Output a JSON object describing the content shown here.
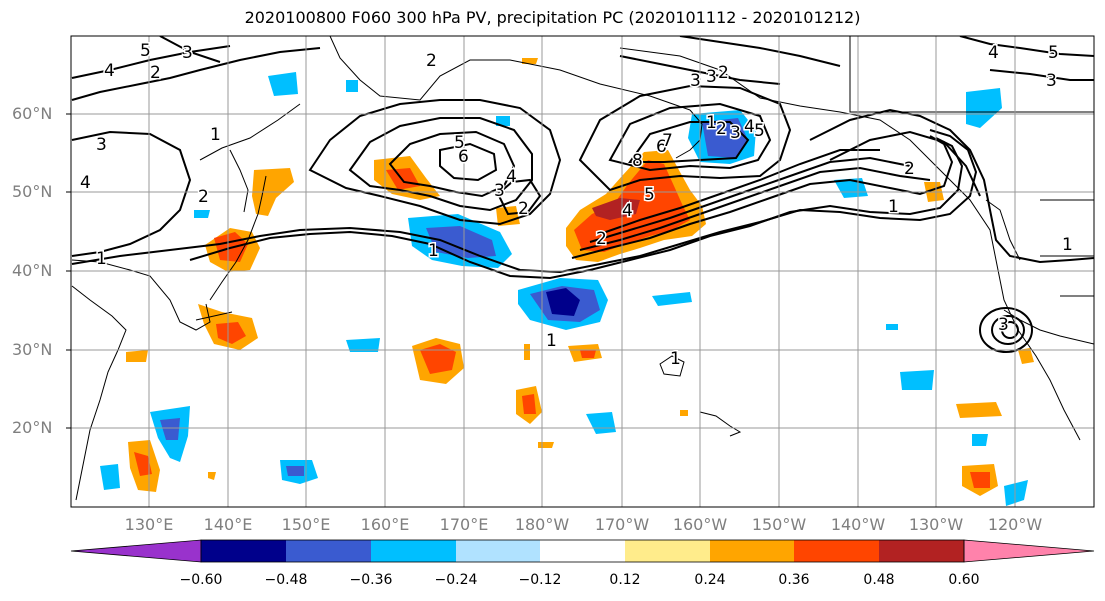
{
  "title": "2020100800 F060 300 hPa PV, precipitation PC (2020101112 - 2020101212)",
  "lat_labels": [
    "60°N",
    "50°N",
    "40°N",
    "30°N",
    "20°N"
  ],
  "lon_labels": [
    "130°E",
    "140°E",
    "150°E",
    "160°E",
    "170°E",
    "180°W",
    "170°W",
    "160°W",
    "150°W",
    "140°W",
    "130°W",
    "120°W"
  ],
  "colorbar": {
    "ticks": [
      "−0.60",
      "−0.48",
      "−0.36",
      "−0.24",
      "−0.12",
      "0.12",
      "0.24",
      "0.36",
      "0.48",
      "0.60"
    ],
    "colors": [
      "#9932cc",
      "#00008b",
      "#3a5bd0",
      "#00bfff",
      "#b0e2ff",
      "#ffffff",
      "#ffec8b",
      "#ffa500",
      "#ff4500",
      "#b22222",
      "#ff82ab"
    ]
  },
  "contour_labels": [
    "5",
    "4",
    "2",
    "3",
    "2",
    "3",
    "3",
    "2",
    "4",
    "5",
    "3",
    "4",
    "3",
    "1",
    "2",
    "1",
    "1",
    "5",
    "6",
    "3",
    "4",
    "2",
    "2",
    "4",
    "5",
    "6",
    "7",
    "8",
    "1",
    "2",
    "3",
    "4",
    "5",
    "1",
    "1",
    "3",
    "2",
    "1",
    "1"
  ]
}
